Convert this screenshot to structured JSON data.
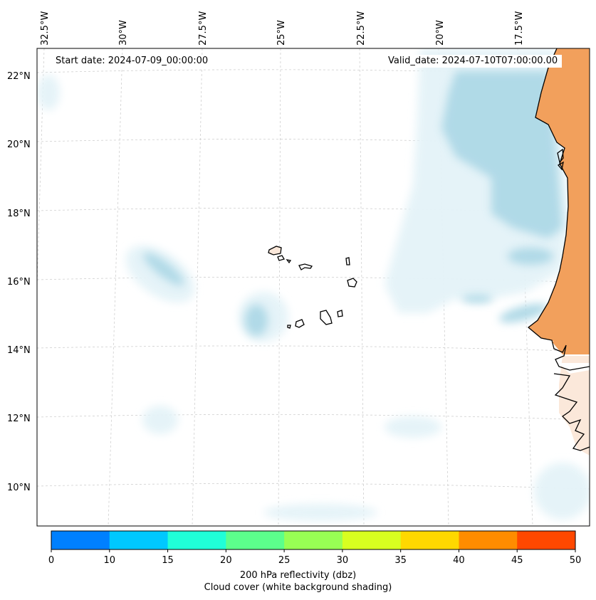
{
  "map": {
    "start_date": "Start date: 2024-07-09_00:00:00",
    "valid_date": "Valid_date: 2024-07-10T07:00:00.00",
    "longitude_labels": [
      "32.5°W",
      "30°W",
      "27.5°W",
      "25°W",
      "22.5°W",
      "20°W",
      "17.5°W"
    ],
    "latitude_labels": [
      "22°N",
      "20°N",
      "18°N",
      "16°N",
      "14°N",
      "12°N",
      "10°N"
    ],
    "region": "Cabo Verde and West African coast"
  },
  "colorbar": {
    "title": "200 hPa reflectivity (dbz)",
    "subtitle": "Cloud cover (white background shading)",
    "ticks": [
      "0",
      "10",
      "15",
      "20",
      "25",
      "30",
      "35",
      "40",
      "45",
      "50"
    ],
    "colors": [
      "#0080ff",
      "#00c8ff",
      "#20ffd8",
      "#5cff8c",
      "#98ff54",
      "#d8ff20",
      "#ffd800",
      "#ff8c00",
      "#ff4800"
    ]
  },
  "colors": {
    "land_fill": "#f2a05c",
    "cloud_light": "#e4f3f8",
    "cloud_medium": "#add8e6",
    "coastline": "#000000"
  }
}
